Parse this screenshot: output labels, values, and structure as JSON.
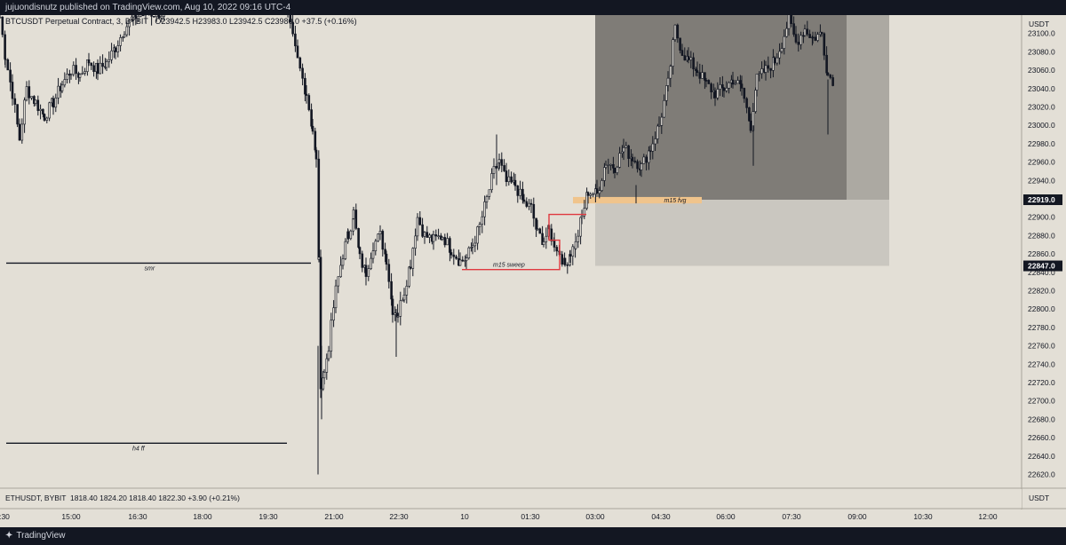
{
  "header": {
    "published": "jujuondisnutz published on TradingView.com, Aug 10, 2022 09:16 UTC-4"
  },
  "legend": {
    "symbol": "BTCUSDT Perpetual Contract, 3, BYBIT",
    "ohlc": "O23942.5  H23983.0  L23942.5  C23980.0  +37.5 (+0.16%)"
  },
  "sub_legend": {
    "symbol": "ETHUSDT, BYBIT",
    "ohlc": "1818.40  1824.20  1818.40  1822.30  +3.90 (+0.21%)"
  },
  "footer": {
    "brand": "TradingView"
  },
  "chart_data": {
    "type": "candlestick",
    "symbol": "BTCUSDT Perpetual Contract",
    "interval": "3",
    "exchange": "BYBIT",
    "currency": "USDT",
    "y_range": [
      22605,
      23120
    ],
    "y_ticks": [
      22620,
      22640,
      22660,
      22680,
      22700,
      22720,
      22740,
      22760,
      22780,
      22800,
      22820,
      22840,
      22860,
      22880,
      22900,
      22920,
      22940,
      22960,
      22980,
      23000,
      23020,
      23040,
      23060,
      23080,
      23100
    ],
    "x_ticks": [
      ":30",
      "15:00",
      "16:30",
      "18:00",
      "19:30",
      "21:00",
      "22:30",
      "10",
      "01:30",
      "03:00",
      "04:30",
      "06:00",
      "07:30",
      "09:00",
      "10:30",
      "12:00"
    ],
    "price_labels": [
      {
        "value": 22919.0,
        "label": "22919.0"
      },
      {
        "value": 22847.0,
        "label": "22847.0"
      }
    ],
    "path": [
      [
        0,
        23118
      ],
      [
        6,
        23075
      ],
      [
        14,
        23035
      ],
      [
        22,
        22985
      ],
      [
        30,
        23040
      ],
      [
        40,
        23025
      ],
      [
        50,
        23010
      ],
      [
        60,
        23025
      ],
      [
        70,
        23045
      ],
      [
        80,
        23060
      ],
      [
        90,
        23055
      ],
      [
        100,
        23070
      ],
      [
        110,
        23060
      ],
      [
        120,
        23068
      ],
      [
        130,
        23085
      ],
      [
        140,
        23105
      ],
      [
        150,
        23118
      ],
      [
        165,
        23122
      ],
      [
        185,
        23122
      ],
      [
        324,
        23118
      ],
      [
        335,
        23070
      ],
      [
        345,
        23035
      ],
      [
        352,
        22995
      ],
      [
        356,
        22960
      ],
      [
        359,
        22850
      ],
      [
        361,
        22720
      ],
      [
        365,
        22730
      ],
      [
        370,
        22760
      ],
      [
        378,
        22820
      ],
      [
        386,
        22860
      ],
      [
        392,
        22880
      ],
      [
        398,
        22905
      ],
      [
        405,
        22855
      ],
      [
        412,
        22840
      ],
      [
        420,
        22870
      ],
      [
        428,
        22880
      ],
      [
        435,
        22855
      ],
      [
        442,
        22800
      ],
      [
        448,
        22795
      ],
      [
        455,
        22820
      ],
      [
        462,
        22850
      ],
      [
        470,
        22900
      ],
      [
        478,
        22880
      ],
      [
        488,
        22875
      ],
      [
        498,
        22880
      ],
      [
        508,
        22865
      ],
      [
        518,
        22852
      ],
      [
        525,
        22855
      ],
      [
        532,
        22870
      ],
      [
        540,
        22890
      ],
      [
        548,
        22920
      ],
      [
        556,
        22950
      ],
      [
        562,
        22960
      ],
      [
        570,
        22938
      ],
      [
        580,
        22935
      ],
      [
        590,
        22915
      ],
      [
        598,
        22910
      ],
      [
        605,
        22882
      ],
      [
        612,
        22875
      ],
      [
        618,
        22885
      ],
      [
        624,
        22872
      ],
      [
        630,
        22862
      ],
      [
        636,
        22848
      ],
      [
        642,
        22862
      ],
      [
        648,
        22870
      ],
      [
        655,
        22900
      ],
      [
        662,
        22928
      ],
      [
        672,
        22925
      ],
      [
        682,
        22960
      ],
      [
        692,
        22955
      ],
      [
        702,
        22975
      ],
      [
        712,
        22965
      ],
      [
        722,
        22955
      ],
      [
        732,
        22975
      ],
      [
        742,
        23000
      ],
      [
        752,
        23045
      ],
      [
        760,
        23105
      ],
      [
        768,
        23080
      ],
      [
        775,
        23070
      ],
      [
        785,
        23060
      ],
      [
        795,
        23045
      ],
      [
        805,
        23035
      ],
      [
        815,
        23040
      ],
      [
        825,
        23050
      ],
      [
        835,
        23040
      ],
      [
        845,
        23000
      ],
      [
        852,
        23050
      ],
      [
        862,
        23060
      ],
      [
        872,
        23070
      ],
      [
        880,
        23090
      ],
      [
        888,
        23115
      ],
      [
        896,
        23090
      ],
      [
        906,
        23105
      ],
      [
        915,
        23095
      ],
      [
        925,
        23100
      ],
      [
        932,
        23055
      ],
      [
        940,
        23048
      ]
    ],
    "annotations": [
      {
        "type": "hline",
        "y": 22850,
        "x_from": 7,
        "x_to": 350,
        "label": "smr"
      },
      {
        "type": "hline",
        "y": 22654,
        "x_from": 7,
        "x_to": 323,
        "label": "h4 ff"
      },
      {
        "type": "zone",
        "y1": 22919,
        "y2": 23120,
        "x_from": 670,
        "x_to": 953,
        "fill": "#7f7c77"
      },
      {
        "type": "zone",
        "y1": 22919,
        "y2": 23120,
        "x_from": 953,
        "x_to": 1001,
        "fill": "#aca9a2"
      },
      {
        "type": "zone",
        "y1": 22847,
        "y2": 22919,
        "x_from": 670,
        "x_to": 1001,
        "fill": "#cac7c0"
      },
      {
        "type": "zone",
        "y1": 22915,
        "y2": 22922,
        "x_from": 645,
        "x_to": 790,
        "fill": "#f0c48c",
        "label": "m15 fvg"
      },
      {
        "type": "bracket",
        "y_top": 22903,
        "y_mid": 22875,
        "y_bottom": 22843,
        "x_from": 520,
        "x_to": 660,
        "label": "m15 sweep",
        "color": "#e0383f"
      }
    ]
  },
  "sub_chart": {
    "symbol": "ETHUSDT",
    "exchange": "BYBIT",
    "currency": "USDT"
  }
}
